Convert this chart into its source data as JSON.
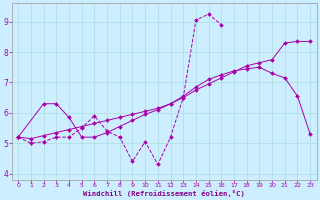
{
  "line_color": "#aa00aa",
  "bg_color": "#cceeff",
  "grid_color": "#aadddd",
  "xlabel": "Windchill (Refroidissement éolien,°C)",
  "xlabel_color": "#880088",
  "ylim": [
    3.8,
    9.6
  ],
  "xlim": [
    -0.5,
    23.5
  ],
  "yticks": [
    4,
    5,
    6,
    7,
    8,
    9
  ],
  "xticks": [
    0,
    1,
    2,
    3,
    4,
    5,
    6,
    7,
    8,
    9,
    10,
    11,
    12,
    13,
    14,
    15,
    16,
    17,
    18,
    19,
    20,
    21,
    22,
    23
  ],
  "line1_x": [
    0,
    1,
    2,
    3,
    4,
    5,
    6,
    7,
    8,
    9,
    10,
    11,
    12,
    13,
    14,
    15,
    16
  ],
  "line1_y": [
    5.2,
    5.0,
    5.05,
    5.2,
    5.2,
    5.5,
    5.9,
    5.4,
    5.2,
    4.4,
    5.05,
    4.3,
    5.2,
    6.5,
    9.05,
    9.25,
    8.9
  ],
  "line2_x": [
    0,
    1,
    2,
    3,
    4,
    5,
    6,
    7,
    8,
    9,
    10,
    11,
    12,
    13,
    14,
    15,
    16,
    17,
    18,
    19,
    20,
    21,
    22,
    23
  ],
  "line2_y": [
    5.2,
    5.15,
    5.25,
    5.35,
    5.45,
    5.55,
    5.65,
    5.75,
    5.85,
    5.95,
    6.05,
    6.15,
    6.3,
    6.5,
    6.75,
    6.95,
    7.15,
    7.35,
    7.55,
    7.65,
    7.75,
    8.3,
    8.35,
    8.35
  ],
  "line3_x": [
    0,
    2,
    3,
    4,
    5,
    6,
    7,
    8,
    9,
    10,
    11,
    12,
    13,
    14,
    15,
    16,
    17,
    18,
    19,
    20,
    21,
    22,
    23
  ],
  "line3_y": [
    5.2,
    6.3,
    6.3,
    5.85,
    5.2,
    5.2,
    5.35,
    5.55,
    5.75,
    5.95,
    6.1,
    6.3,
    6.55,
    6.85,
    7.1,
    7.25,
    7.38,
    7.45,
    7.5,
    7.3,
    7.15,
    6.55,
    5.3
  ]
}
